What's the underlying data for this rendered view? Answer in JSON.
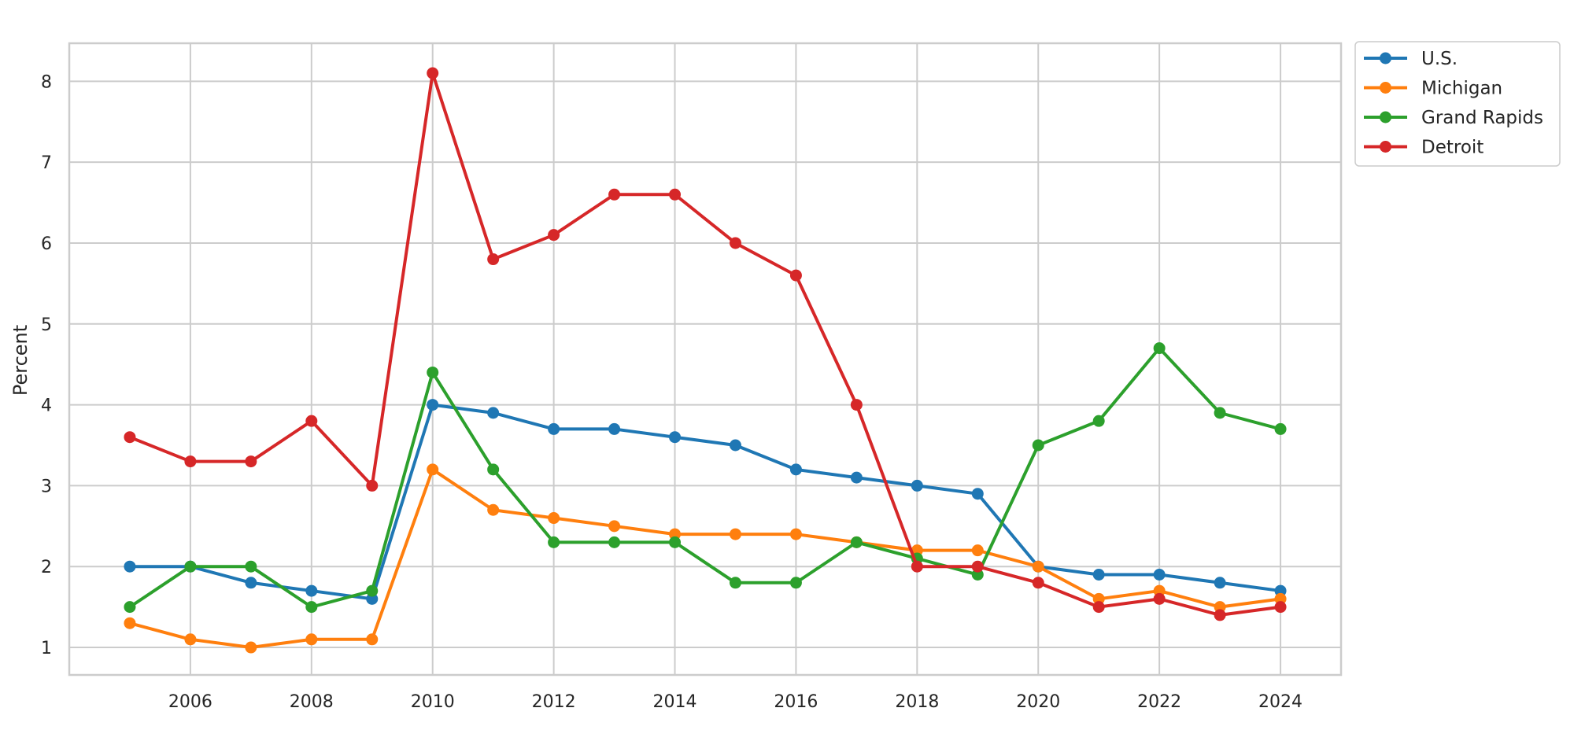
{
  "chart_data": {
    "type": "line",
    "title": "",
    "xlabel": "",
    "ylabel": "Percent",
    "x": [
      2005,
      2006,
      2007,
      2008,
      2009,
      2010,
      2011,
      2012,
      2013,
      2014,
      2015,
      2016,
      2017,
      2018,
      2019,
      2020,
      2021,
      2022,
      2023,
      2024
    ],
    "xlim": [
      2004,
      2025
    ],
    "ylim": [
      0.66,
      8.47
    ],
    "xticks": [
      2006,
      2008,
      2010,
      2012,
      2014,
      2016,
      2018,
      2020,
      2022,
      2024
    ],
    "yticks": [
      1,
      2,
      3,
      4,
      5,
      6,
      7,
      8
    ],
    "grid": true,
    "legend_position": "outside-top-right",
    "series": [
      {
        "name": "U.S.",
        "color": "#1f77b4",
        "values": [
          2.0,
          2.0,
          1.8,
          1.7,
          1.6,
          4.0,
          3.9,
          3.7,
          3.7,
          3.6,
          3.5,
          3.2,
          3.1,
          3.0,
          2.9,
          2.0,
          1.9,
          1.9,
          1.8,
          1.7
        ]
      },
      {
        "name": "Michigan",
        "color": "#ff7f0e",
        "values": [
          1.3,
          1.1,
          1.0,
          1.1,
          1.1,
          3.2,
          2.7,
          2.6,
          2.5,
          2.4,
          2.4,
          2.4,
          2.3,
          2.2,
          2.2,
          2.0,
          1.6,
          1.7,
          1.5,
          1.6
        ]
      },
      {
        "name": "Grand Rapids",
        "color": "#2ca02c",
        "values": [
          1.5,
          2.0,
          2.0,
          1.5,
          1.7,
          4.4,
          3.2,
          2.3,
          2.3,
          2.3,
          1.8,
          1.8,
          2.3,
          2.1,
          1.9,
          3.5,
          3.8,
          4.7,
          3.9,
          3.7
        ]
      },
      {
        "name": "Detroit",
        "color": "#d62728",
        "values": [
          3.6,
          3.3,
          3.3,
          3.8,
          3.0,
          8.1,
          5.8,
          6.1,
          6.6,
          6.6,
          6.0,
          5.6,
          4.0,
          2.0,
          2.0,
          1.8,
          1.5,
          1.6,
          1.4,
          1.5
        ]
      }
    ]
  }
}
